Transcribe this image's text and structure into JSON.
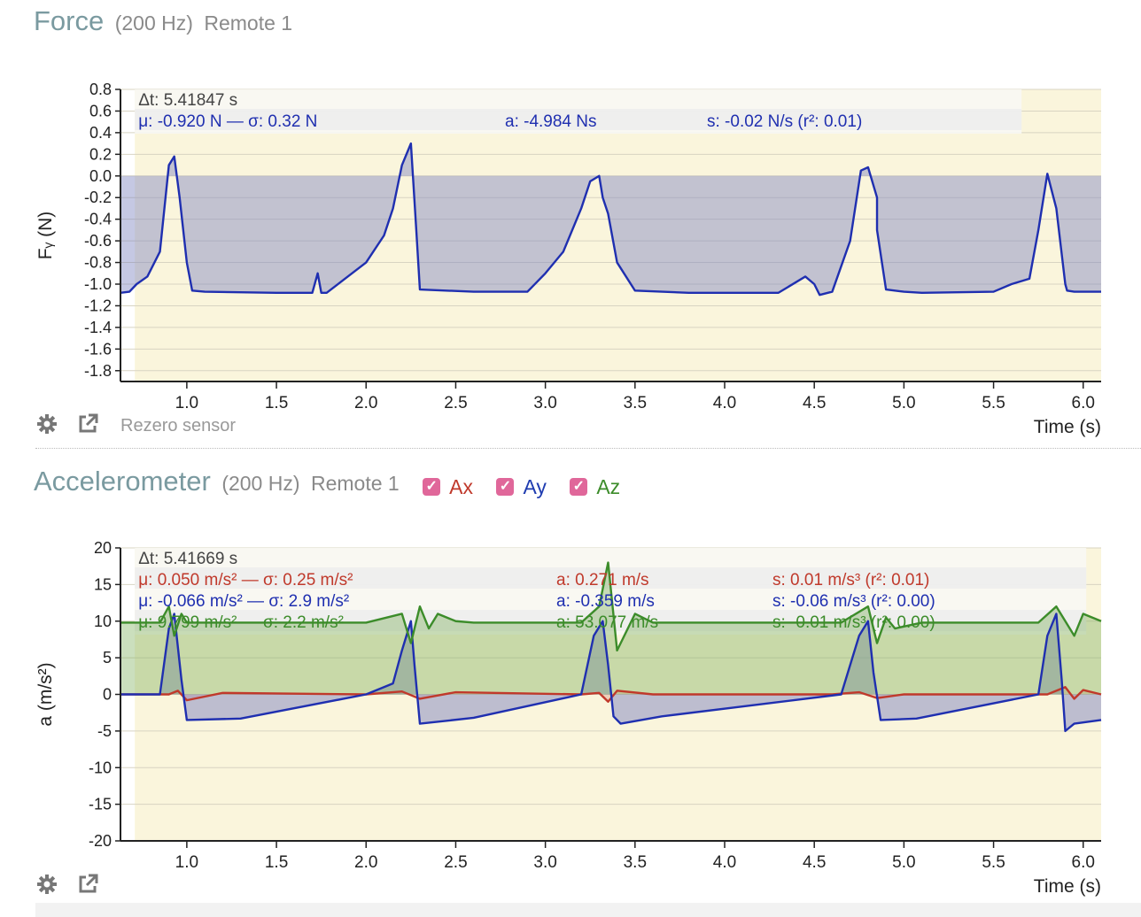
{
  "force_panel": {
    "title": "Force",
    "rate": "(200 Hz)",
    "device": "Remote 1",
    "rezero_label": "Rezero sensor",
    "icons": [
      "gear-icon",
      "external-link-icon"
    ]
  },
  "accel_panel": {
    "title": "Accelerometer",
    "rate": "(200 Hz)",
    "device": "Remote 1",
    "checkboxes": [
      {
        "label": "Ax",
        "checked": true,
        "color": "#c0392b"
      },
      {
        "label": "Ay",
        "checked": true,
        "color": "#1f3cb0"
      },
      {
        "label": "Az",
        "checked": true,
        "color": "#3c8c2a"
      }
    ],
    "icons": [
      "gear-icon",
      "external-link-icon"
    ]
  },
  "chart_data": [
    {
      "type": "line",
      "ylabel": "Fᵧ (N)",
      "xlabel": "Time (s)",
      "xlim": [
        0.63,
        6.1
      ],
      "ylim": [
        -1.9,
        0.8
      ],
      "xticks": [
        "1.0",
        "1.5",
        "2.0",
        "2.5",
        "3.0",
        "3.5",
        "4.0",
        "4.5",
        "5.0",
        "5.5",
        "6.0"
      ],
      "yticks": [
        "0.8",
        "0.6",
        "0.4",
        "0.2",
        "0.0",
        "-0.2",
        "-0.4",
        "-0.6",
        "-0.8",
        "-1.0",
        "-1.2",
        "-1.4",
        "-1.6",
        "-1.8"
      ],
      "selection": [
        0.71,
        6.1
      ],
      "stats": {
        "dt": "Δt: 5.41847 s",
        "mean": "μ: -0.920 N — σ: 0.32 N",
        "area": "a: -4.984 Ns",
        "slope": "s: -0.02 N/s (r²: 0.01)"
      },
      "series": [
        {
          "color": "#1f2fb0",
          "x": [
            0.63,
            0.68,
            0.72,
            0.78,
            0.85,
            0.9,
            0.93,
            0.96,
            1.0,
            1.03,
            1.1,
            1.5,
            1.7,
            1.73,
            1.75,
            1.78,
            2.0,
            2.1,
            2.15,
            2.2,
            2.25,
            2.28,
            2.3,
            2.6,
            2.9,
            3.0,
            3.1,
            3.2,
            3.25,
            3.3,
            3.32,
            3.35,
            3.4,
            3.5,
            3.8,
            4.3,
            4.45,
            4.5,
            4.53,
            4.6,
            4.7,
            4.76,
            4.8,
            4.85,
            4.85,
            4.9,
            5.0,
            5.1,
            5.5,
            5.6,
            5.7,
            5.75,
            5.8,
            5.85,
            5.9,
            5.91,
            5.95,
            6.1
          ],
          "y": [
            -1.08,
            -1.07,
            -1.0,
            -0.93,
            -0.7,
            0.1,
            0.18,
            -0.2,
            -0.8,
            -1.06,
            -1.07,
            -1.08,
            -1.08,
            -0.9,
            -1.08,
            -1.08,
            -0.8,
            -0.55,
            -0.3,
            0.1,
            0.3,
            -0.5,
            -1.05,
            -1.07,
            -1.07,
            -0.9,
            -0.7,
            -0.3,
            -0.05,
            0.0,
            -0.2,
            -0.35,
            -0.8,
            -1.06,
            -1.08,
            -1.08,
            -0.93,
            -1.0,
            -1.1,
            -1.07,
            -0.6,
            0.05,
            0.08,
            -0.2,
            -0.5,
            -1.05,
            -1.07,
            -1.08,
            -1.07,
            -1.0,
            -0.95,
            -0.5,
            0.02,
            -0.3,
            -1.0,
            -1.06,
            -1.07,
            -1.07
          ]
        }
      ]
    },
    {
      "type": "line",
      "ylabel": "a (m/s²)",
      "xlabel": "Time (s)",
      "xlim": [
        0.63,
        6.1
      ],
      "ylim": [
        -20,
        20
      ],
      "xticks": [
        "1.0",
        "1.5",
        "2.0",
        "2.5",
        "3.0",
        "3.5",
        "4.0",
        "4.5",
        "5.0",
        "5.5",
        "6.0"
      ],
      "yticks": [
        "20",
        "15",
        "10",
        "5",
        "0",
        "-5",
        "-10",
        "-15",
        "-20"
      ],
      "selection": [
        0.71,
        6.1
      ],
      "stats": {
        "dt": "Δt: 5.41669 s",
        "rows": [
          {
            "mean": "μ: 0.050 m/s² — σ: 0.25 m/s²",
            "area": "a: 0.271 m/s",
            "slope": "s: 0.01 m/s³ (r²: 0.01)",
            "color": "#c0392b"
          },
          {
            "mean": "μ: -0.066 m/s² — σ: 2.9 m/s²",
            "area": "a: -0.359 m/s",
            "slope": "s: -0.06 m/s³ (r²: 0.00)",
            "color": "#1f2fb0"
          },
          {
            "mean": "μ: 9.799 m/s² — σ: 2.2 m/s²",
            "area": "a: 53.077 m/s",
            "slope": "s: -0.01 m/s³ (r²: 0.00)",
            "color": "#3c8c2a"
          }
        ]
      },
      "series": [
        {
          "name": "Ax",
          "color": "#c0392b",
          "x": [
            0.63,
            0.9,
            0.95,
            1.0,
            1.2,
            2.0,
            2.2,
            2.3,
            2.5,
            3.2,
            3.3,
            3.35,
            3.4,
            3.6,
            4.6,
            4.75,
            4.85,
            5.0,
            5.8,
            5.9,
            5.95,
            6.0,
            6.1
          ],
          "y": [
            0,
            0,
            0.5,
            -0.8,
            0.2,
            0,
            0.4,
            -0.6,
            0.3,
            0,
            0.2,
            -1.0,
            0.5,
            0,
            0,
            0.3,
            -0.5,
            0,
            0,
            1.0,
            -0.6,
            0.6,
            0
          ]
        },
        {
          "name": "Ay",
          "color": "#1f2fb0",
          "x": [
            0.63,
            0.85,
            0.9,
            0.93,
            0.97,
            1.0,
            1.3,
            2.0,
            2.15,
            2.2,
            2.25,
            2.27,
            2.3,
            2.6,
            3.2,
            3.27,
            3.32,
            3.35,
            3.38,
            3.42,
            3.65,
            4.65,
            4.75,
            4.8,
            4.83,
            4.87,
            5.07,
            5.75,
            5.8,
            5.85,
            5.88,
            5.9,
            5.95,
            6.1
          ],
          "y": [
            0,
            0,
            9,
            11,
            2,
            -3.5,
            -3.3,
            0,
            1.5,
            6,
            10,
            4,
            -4,
            -3.2,
            0,
            8,
            10,
            4,
            -3,
            -4,
            -3,
            0,
            8,
            10,
            3,
            -3.5,
            -3.3,
            0,
            8,
            11,
            2,
            -5,
            -4,
            -3.5
          ]
        },
        {
          "name": "Az",
          "color": "#3c8c2a",
          "x": [
            0.63,
            0.85,
            0.9,
            0.93,
            0.97,
            1.0,
            1.3,
            2.0,
            2.2,
            2.25,
            2.3,
            2.35,
            2.4,
            2.5,
            2.6,
            3.2,
            3.3,
            3.35,
            3.4,
            3.5,
            3.6,
            4.65,
            4.8,
            4.85,
            4.9,
            4.95,
            5.1,
            5.75,
            5.85,
            5.95,
            6.0,
            6.1
          ],
          "y": [
            9.8,
            9.8,
            12,
            8,
            11,
            9.8,
            9.8,
            9.8,
            11,
            7,
            12,
            9,
            11,
            10,
            9.8,
            9.8,
            12,
            18,
            6,
            11,
            9.8,
            9.8,
            12,
            7,
            10.5,
            9,
            9.8,
            9.8,
            12,
            8,
            11,
            10
          ]
        }
      ]
    }
  ]
}
